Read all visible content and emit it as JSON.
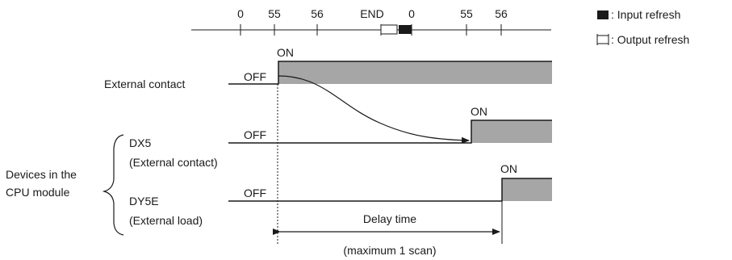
{
  "scan_axis": {
    "tick_labels": [
      "0",
      "55",
      "56",
      "END",
      "0",
      "55",
      "56"
    ]
  },
  "legend": {
    "input_refresh": ": Input refresh",
    "output_refresh": ": Output refresh"
  },
  "signals": {
    "external_contact": {
      "label": "External contact",
      "off": "OFF",
      "on": "ON"
    },
    "dx5": {
      "label": "DX5",
      "sublabel": "(External contact)",
      "off": "OFF",
      "on": "ON"
    },
    "dy5e": {
      "label": "DY5E",
      "sublabel": "(External load)",
      "off": "OFF",
      "on": "ON"
    }
  },
  "group": {
    "line1": "Devices in the",
    "line2": "CPU module"
  },
  "delay": {
    "label": "Delay time",
    "note": "(maximum 1 scan)"
  },
  "colors": {
    "on_fill": "#a6a6a6",
    "line": "#1a1a1a"
  }
}
